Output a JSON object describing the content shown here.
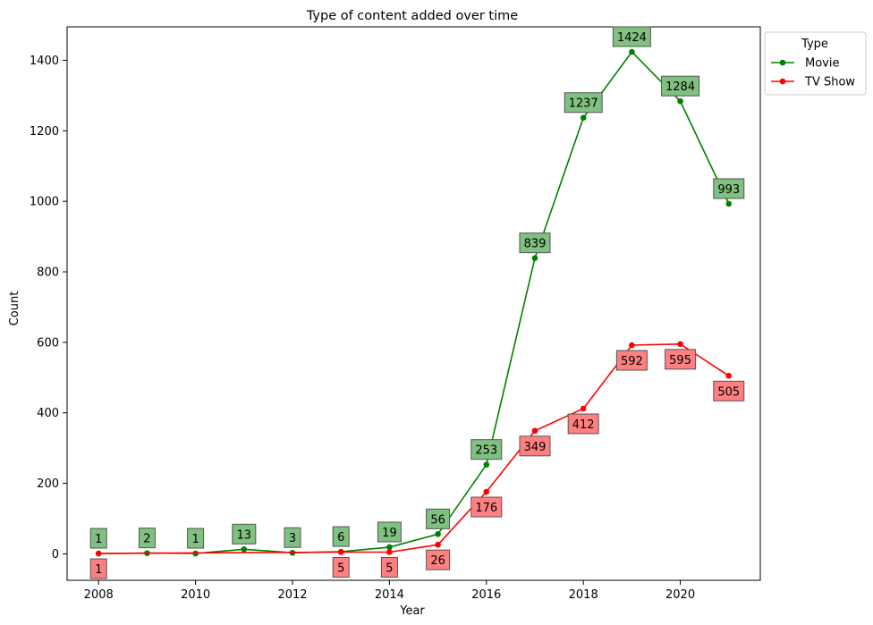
{
  "chart_data": {
    "type": "line",
    "title": "Type of content added over time",
    "xlabel": "Year",
    "ylabel": "Count",
    "xlim": [
      2007.35,
      2021.65
    ],
    "ylim": [
      -75,
      1495
    ],
    "xticks": [
      2008,
      2010,
      2012,
      2014,
      2016,
      2018,
      2020
    ],
    "yticks": [
      0,
      200,
      400,
      600,
      800,
      1000,
      1200,
      1400
    ],
    "grid": false,
    "legend": {
      "title": "Type",
      "position": "outside-top-right"
    },
    "series": [
      {
        "name": "Movie",
        "color": "#008000",
        "label_bg": "#80c080",
        "label_position": "above",
        "x": [
          2008,
          2009,
          2010,
          2011,
          2012,
          2013,
          2014,
          2015,
          2016,
          2017,
          2018,
          2019,
          2020,
          2021
        ],
        "values": [
          1,
          2,
          1,
          13,
          3,
          6,
          19,
          56,
          253,
          839,
          1237,
          1424,
          1284,
          993
        ]
      },
      {
        "name": "TV Show",
        "color": "#ff0000",
        "label_bg": "#ff8080",
        "label_position": "below",
        "x": [
          2008,
          2013,
          2014,
          2015,
          2016,
          2017,
          2018,
          2019,
          2020,
          2021
        ],
        "values": [
          1,
          5,
          5,
          26,
          176,
          349,
          412,
          592,
          595,
          505
        ]
      }
    ]
  }
}
